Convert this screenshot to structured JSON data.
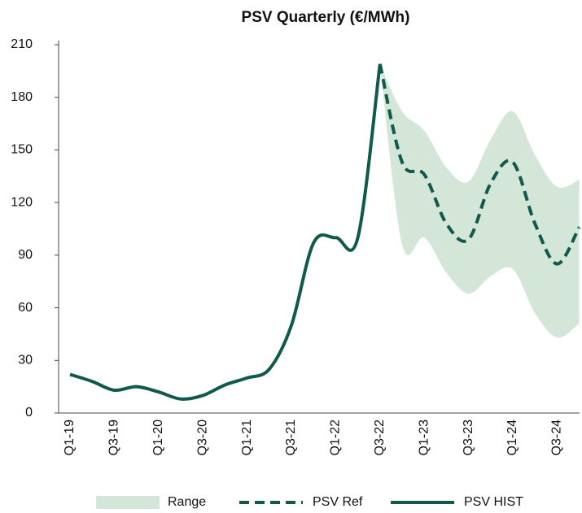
{
  "chart_data": {
    "type": "line",
    "title": "PSV Quarterly (€/MWh)",
    "categories": [
      "Q1-19",
      null,
      "Q3-19",
      null,
      "Q1-20",
      null,
      "Q3-20",
      null,
      "Q1-21",
      null,
      "Q3-21",
      null,
      "Q1-22",
      null,
      "Q3-22",
      null,
      "Q1-23",
      null,
      "Q3-23",
      null,
      "Q1-24",
      null,
      "Q3-24",
      null
    ],
    "series": [
      {
        "name": "Range",
        "color": "#d3e6d8",
        "high": [
          null,
          null,
          null,
          null,
          null,
          null,
          null,
          null,
          null,
          null,
          null,
          null,
          null,
          null,
          199,
          172,
          161,
          140,
          132,
          156,
          172,
          147,
          129,
          133
        ],
        "low": [
          null,
          null,
          null,
          null,
          null,
          null,
          null,
          null,
          null,
          null,
          null,
          null,
          null,
          null,
          199,
          96,
          100,
          80,
          68,
          78,
          82,
          57,
          43,
          51
        ]
      },
      {
        "name": "PSV Ref",
        "color": "#0f5a4a",
        "dashed": true,
        "values": [
          null,
          null,
          null,
          null,
          null,
          null,
          null,
          null,
          null,
          null,
          null,
          null,
          null,
          null,
          199,
          143,
          136,
          108,
          99,
          131,
          143,
          108,
          85,
          106
        ]
      },
      {
        "name": "PSV HIST",
        "color": "#0f5a4a",
        "dashed": false,
        "values": [
          22,
          18,
          13,
          15,
          12,
          8,
          10,
          16,
          20,
          25,
          50,
          97,
          100,
          100,
          199,
          null,
          null,
          null,
          null,
          null,
          null,
          null,
          null,
          null
        ]
      }
    ],
    "ylim": [
      0,
      210
    ],
    "yticks": [
      0,
      30,
      60,
      90,
      120,
      150,
      180,
      210
    ]
  }
}
